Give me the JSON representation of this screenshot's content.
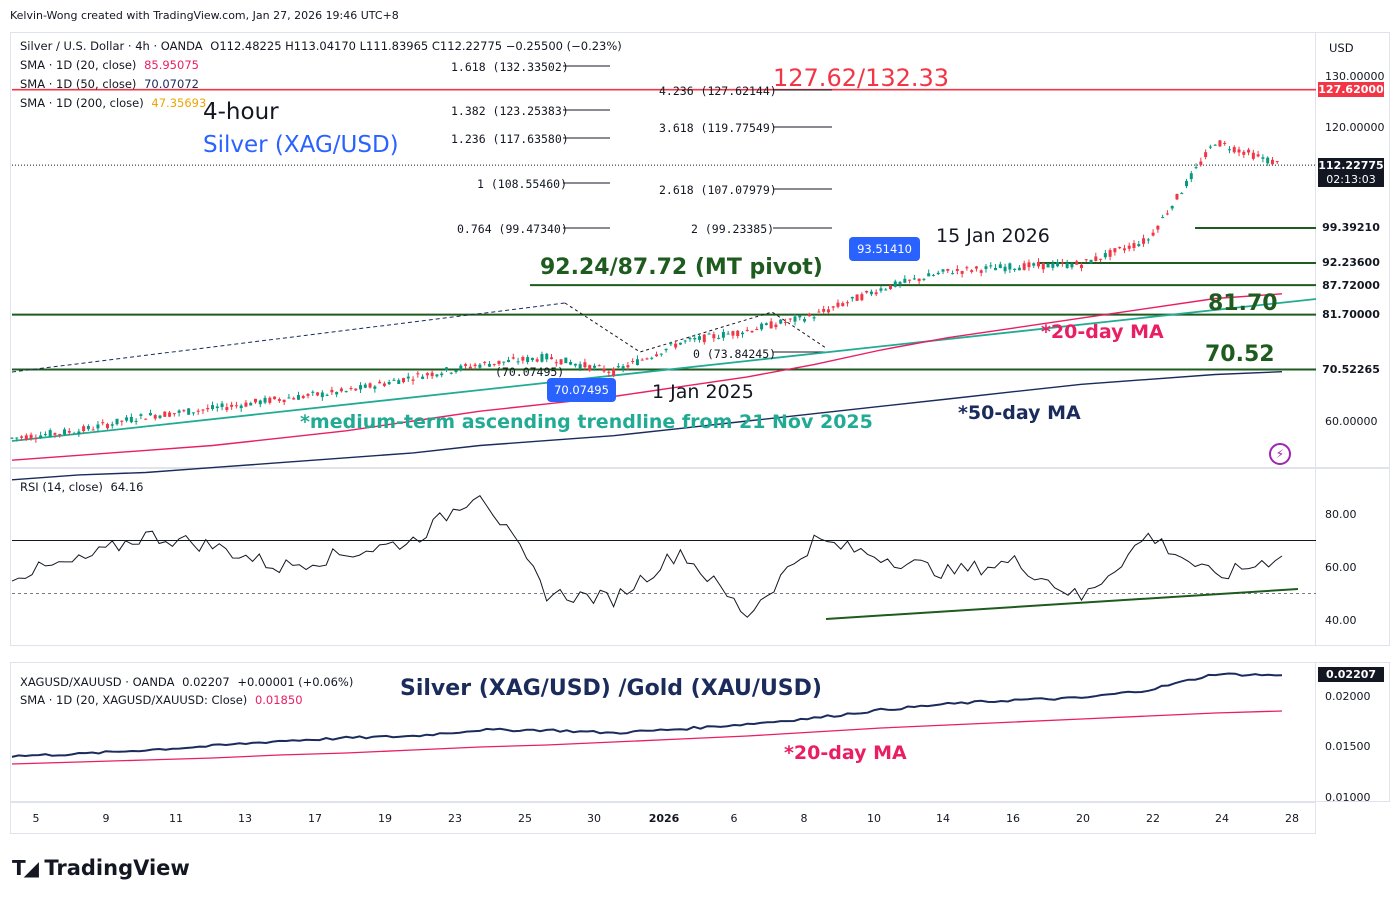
{
  "header": {
    "credit": "Kelvin-Wong created with TradingView.com, Jan 27, 2026 19:46 UTC+8"
  },
  "legend": {
    "symbol": "Silver / U.S. Dollar · 4h · OANDA",
    "ohlc": "O112.48225  H113.04170  L111.83965  C112.22775  −0.25500 (−0.23%)",
    "sma20_label": "SMA · 1D (20, close)",
    "sma20_value": "85.95075",
    "sma50_label": "SMA · 1D (50, close)",
    "sma50_value": "70.07072",
    "sma200_label": "SMA · 1D (200, close)",
    "sma200_value": "47.35693"
  },
  "currency": "USD",
  "rsi_legend": {
    "label": "RSI (14, close)",
    "value": "64.16"
  },
  "ratio_legend": {
    "label": "XAGUSD/XAUUSD · OANDA",
    "value": "0.02207",
    "change": "+0.00001 (+0.06%)",
    "sma_label": "SMA · 1D (20, XAGUSD/XAUUSD: Close)",
    "sma_value": "0.01850"
  },
  "price_axis": {
    "ticks": [
      "130.00000",
      "120.00000",
      "60.00000"
    ]
  },
  "price_labels": [
    {
      "text": "127.62000",
      "bg": "#f23645",
      "level": 127.62
    },
    {
      "text": "112.22775",
      "bg": "#131722",
      "level": 112.23
    },
    {
      "text": "02:13:03",
      "bg": "#131722",
      "level": 110.2
    },
    {
      "text": "99.39210",
      "bg": "#ffffff",
      "fg": "#131722",
      "level": 99.39
    },
    {
      "text": "92.23600",
      "bg": "#ffffff",
      "fg": "#131722",
      "level": 92.24
    },
    {
      "text": "87.72000",
      "bg": "#ffffff",
      "fg": "#131722",
      "level": 87.72
    },
    {
      "text": "81.70000",
      "bg": "#ffffff",
      "fg": "#131722",
      "level": 81.7
    },
    {
      "text": "70.52265",
      "bg": "#ffffff",
      "fg": "#131722",
      "level": 70.52
    }
  ],
  "rsi_axis": {
    "ticks": [
      "80.00",
      "60.00",
      "40.00"
    ]
  },
  "ratio_axis": {
    "ticks": [
      "0.02000",
      "0.01500",
      "0.01000"
    ],
    "current": "0.02207"
  },
  "x_axis": {
    "ticks": [
      "5",
      "9",
      "11",
      "13",
      "17",
      "19",
      "23",
      "25",
      "30",
      "2026",
      "6",
      "8",
      "10",
      "14",
      "16",
      "20",
      "22",
      "24",
      "28"
    ]
  },
  "fib_left": [
    {
      "text": "1.618 (132.33502)"
    },
    {
      "text": "1.382 (123.25383)"
    },
    {
      "text": "1.236 (117.63580)"
    },
    {
      "text": "1 (108.55460)"
    },
    {
      "text": "0.764 (99.47340)"
    },
    {
      "text": "(70.07495)"
    }
  ],
  "fib_right": [
    {
      "text": "4.236 (127.62144)"
    },
    {
      "text": "3.618 (119.77549)"
    },
    {
      "text": "2.618 (107.07979)"
    },
    {
      "text": "2 (99.23385)"
    },
    {
      "text": "0 (73.84245)"
    }
  ],
  "annotations": {
    "target": "127.62/132.33",
    "timeframe": "4-hour",
    "instrument": "Silver (XAG/USD)",
    "pivot": "92.24/87.72 (MT pivot)",
    "date_high": "15 Jan 2026",
    "date_low": "1 Jan 2025",
    "level_81": "81.70",
    "level_70": "70.52",
    "ma20": "*20-day MA",
    "ma50": "*50-day MA",
    "trendline": "*medium-term ascending trendline from 21 Nov 2025",
    "ratio_title": "Silver (XAG/USD) /Gold (XAU/USD)",
    "ratio_ma20": "*20-day MA",
    "badge_high": "93.51410",
    "badge_low": "70.07495"
  },
  "colors": {
    "up": "#089981",
    "down": "#f23645",
    "pivot": "#1e5b1e",
    "ma20": "#e91e63",
    "ma50": "#1a2b5c",
    "trend": "#22ab94",
    "blue": "#2962ff"
  },
  "brand": "TradingView",
  "chart_data": [
    {
      "type": "line",
      "title": "Silver / U.S. Dollar · 4h · OANDA",
      "x": [
        "5",
        "9",
        "11",
        "13",
        "17",
        "19",
        "23",
        "25",
        "30",
        "2026",
        "6",
        "8",
        "10",
        "14",
        "16",
        "20",
        "22",
        "24",
        "26",
        "27"
      ],
      "series": [
        {
          "name": "Silver / U.S. Dollar · 4h · OANDA",
          "values": [
            56.5,
            58.0,
            61.0,
            62.5,
            64.5,
            66.0,
            69.0,
            71.5,
            73.0,
            70.0,
            76.0,
            78.5,
            81.5,
            87.0,
            90.5,
            91.5,
            92.0,
            97.0,
            117.0,
            112.23
          ]
        },
        {
          "name": "SMA · 1D (20, close)",
          "values": [
            52.0,
            53.0,
            54.0,
            55.0,
            56.5,
            58.0,
            60.0,
            62.0,
            63.5,
            65.0,
            67.0,
            69.0,
            71.5,
            74.5,
            77.0,
            79.0,
            81.0,
            83.0,
            85.0,
            85.95
          ]
        },
        {
          "name": "SMA · 1D (50, close)",
          "values": [
            48.0,
            49.0,
            49.5,
            50.5,
            51.5,
            52.5,
            53.5,
            55.0,
            56.0,
            57.0,
            58.5,
            60.0,
            61.5,
            63.0,
            64.5,
            66.0,
            67.5,
            68.5,
            69.5,
            70.07
          ]
        }
      ],
      "ylim": [
        50,
        135
      ]
    },
    {
      "type": "line",
      "title": "RSI (14, close)",
      "x": [
        "5",
        "9",
        "11",
        "13",
        "17",
        "19",
        "23",
        "25",
        "30",
        "2026",
        "6",
        "8",
        "10",
        "14",
        "16",
        "20",
        "22",
        "24",
        "26",
        "27"
      ],
      "series": [
        {
          "name": "RSI (14, close)",
          "values": [
            57,
            62,
            72,
            68,
            60,
            65,
            70,
            89,
            50,
            48,
            66,
            42,
            70,
            64,
            58,
            62,
            48,
            72,
            56,
            64.16
          ]
        }
      ],
      "ylim": [
        30,
        92
      ]
    },
    {
      "type": "line",
      "title": "XAGUSD/XAUUSD · OANDA",
      "x": [
        "5",
        "9",
        "11",
        "13",
        "17",
        "19",
        "23",
        "25",
        "30",
        "2026",
        "6",
        "8",
        "10",
        "14",
        "16",
        "20",
        "22",
        "24",
        "26",
        "27"
      ],
      "series": [
        {
          "name": "XAGUSD/XAUUSD · OANDA",
          "values": [
            0.014,
            0.0142,
            0.0146,
            0.015,
            0.0155,
            0.0158,
            0.016,
            0.0166,
            0.0166,
            0.0163,
            0.0167,
            0.0172,
            0.0178,
            0.0186,
            0.0192,
            0.0196,
            0.0198,
            0.0206,
            0.0222,
            0.02207
          ]
        },
        {
          "name": "SMA · 1D (20, XAGUSD/XAUUSD: Close)",
          "values": [
            0.0132,
            0.0134,
            0.0136,
            0.0138,
            0.0141,
            0.0143,
            0.0146,
            0.0149,
            0.0151,
            0.0154,
            0.0157,
            0.016,
            0.0164,
            0.0168,
            0.0171,
            0.0174,
            0.0177,
            0.018,
            0.0183,
            0.0185
          ]
        }
      ],
      "ylim": [
        0.0098,
        0.0232
      ]
    }
  ]
}
